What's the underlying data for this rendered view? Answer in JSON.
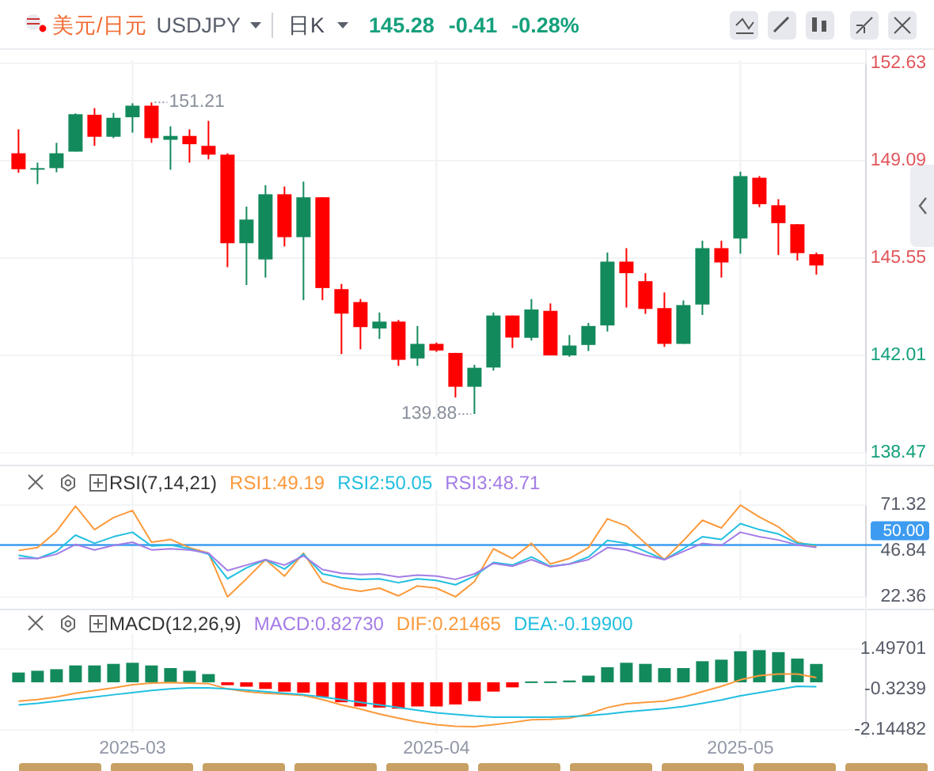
{
  "chart_data": [
    {
      "type": "candlestick",
      "title": "美元/日元",
      "subtitle": "USDJPY",
      "annotations": [
        "日K",
        "145.28",
        "-0.41",
        "-0.28%",
        "151.21",
        "139.88"
      ],
      "categories": [
        null,
        null,
        null,
        null,
        null,
        null,
        "2025-03",
        null,
        null,
        null,
        null,
        null,
        null,
        null,
        null,
        null,
        null,
        null,
        null,
        null,
        null,
        null,
        "2025-04",
        null,
        null,
        null,
        null,
        null,
        null,
        null,
        null,
        null,
        null,
        null,
        null,
        null,
        null,
        null,
        "2025-05",
        null,
        null,
        null,
        null
      ],
      "ohlc": [
        [
          149.36,
          150.23,
          148.65,
          148.78
        ],
        [
          148.78,
          149.02,
          148.24,
          148.82
        ],
        [
          148.82,
          149.74,
          148.67,
          149.36
        ],
        [
          149.42,
          150.81,
          149.42,
          150.78
        ],
        [
          150.76,
          151.0,
          149.63,
          149.96
        ],
        [
          149.96,
          150.83,
          149.91,
          150.65
        ],
        [
          150.67,
          151.18,
          150.11,
          151.09
        ],
        [
          151.09,
          151.21,
          149.74,
          149.91
        ],
        [
          149.85,
          150.34,
          148.76,
          149.99
        ],
        [
          149.99,
          150.23,
          149.02,
          149.69
        ],
        [
          149.63,
          150.54,
          149.14,
          149.31
        ],
        [
          149.31,
          149.36,
          145.22,
          146.09
        ],
        [
          146.09,
          147.42,
          144.57,
          146.95
        ],
        [
          145.5,
          148.2,
          144.84,
          147.87
        ],
        [
          147.87,
          148.15,
          145.97,
          146.31
        ],
        [
          146.31,
          148.33,
          144.02,
          147.76
        ],
        [
          147.76,
          147.76,
          144.02,
          144.46
        ],
        [
          144.42,
          144.61,
          142.06,
          143.53
        ],
        [
          143.95,
          144.06,
          142.23,
          143.04
        ],
        [
          142.99,
          143.57,
          142.61,
          143.24
        ],
        [
          143.24,
          143.3,
          141.63,
          141.85
        ],
        [
          141.9,
          143.08,
          141.63,
          142.43
        ],
        [
          142.43,
          142.48,
          142.14,
          142.19
        ],
        [
          142.1,
          142.1,
          140.48,
          140.87
        ],
        [
          140.87,
          141.67,
          139.88,
          141.56
        ],
        [
          141.57,
          143.57,
          141.46,
          143.46
        ],
        [
          143.46,
          143.46,
          142.28,
          142.66
        ],
        [
          142.65,
          144.06,
          142.55,
          143.68
        ],
        [
          143.63,
          143.9,
          142.01,
          142.01
        ],
        [
          142.01,
          142.75,
          141.96,
          142.37
        ],
        [
          142.39,
          143.19,
          142.17,
          143.08
        ],
        [
          143.1,
          145.75,
          142.88,
          145.42
        ],
        [
          145.42,
          145.91,
          143.75,
          145.0
        ],
        [
          144.71,
          145.0,
          143.52,
          143.7
        ],
        [
          143.73,
          144.3,
          142.32,
          142.43
        ],
        [
          142.43,
          144.01,
          142.43,
          143.84
        ],
        [
          143.86,
          146.18,
          143.48,
          145.91
        ],
        [
          145.91,
          146.18,
          144.84,
          145.39
        ],
        [
          146.26,
          148.69,
          145.71,
          148.53
        ],
        [
          148.47,
          148.53,
          147.4,
          147.51
        ],
        [
          147.47,
          147.69,
          145.66,
          146.82
        ],
        [
          146.78,
          146.78,
          145.46,
          145.73
        ],
        [
          145.69,
          145.75,
          144.95,
          145.28
        ]
      ],
      "colors": [
        "#ff0000",
        "#138a5c",
        "#138a5c",
        "#138a5c",
        "#ff0000",
        "#138a5c",
        "#138a5c",
        "#ff0000",
        "#138a5c",
        "#ff0000",
        "#ff0000",
        "#ff0000",
        "#138a5c",
        "#138a5c",
        "#ff0000",
        "#138a5c",
        "#ff0000",
        "#ff0000",
        "#ff0000",
        "#138a5c",
        "#ff0000",
        "#138a5c",
        "#ff0000",
        "#ff0000",
        "#138a5c",
        "#138a5c",
        "#ff0000",
        "#138a5c",
        "#ff0000",
        "#138a5c",
        "#138a5c",
        "#138a5c",
        "#ff0000",
        "#ff0000",
        "#ff0000",
        "#138a5c",
        "#138a5c",
        "#ff0000",
        "#138a5c",
        "#ff0000",
        "#ff0000",
        "#ff0000",
        "#ff0000"
      ],
      "ylim": [
        138.47,
        152.63
      ],
      "yticks": [
        138.47,
        142.01,
        145.55,
        149.09,
        152.63
      ],
      "grid": true,
      "tick_labels": "y"
    },
    {
      "type": "line",
      "title": "RSI(7,14,21)",
      "legend": "top",
      "grid": "x",
      "tick_labels": "y",
      "categories": [
        null,
        null,
        null,
        null,
        null,
        null,
        "2025-03",
        null,
        null,
        null,
        null,
        null,
        null,
        null,
        null,
        null,
        null,
        null,
        null,
        null,
        null,
        null,
        "2025-04",
        null,
        null,
        null,
        null,
        null,
        null,
        null,
        null,
        null,
        null,
        null,
        null,
        null,
        null,
        null,
        "2025-05",
        null,
        null,
        null,
        null
      ],
      "ylim": [
        22.36,
        71.32
      ],
      "yticks": [
        22.36,
        46.84,
        71.32
      ],
      "ref_lines": [
        {
          "axis": "y",
          "value": 50,
          "label": "50.00",
          "color": "#3d9cf0"
        }
      ],
      "series": [
        {
          "name": "RSI1:49.19",
          "color": "#fb9a3c",
          "values": [
            47.1,
            48.6,
            57.3,
            70.7,
            58.2,
            64.6,
            68.4,
            51.5,
            53.0,
            48.6,
            45.7,
            22.4,
            32.0,
            42.2,
            33.4,
            45.7,
            30.5,
            27.0,
            25.3,
            27.0,
            22.9,
            28.2,
            27.0,
            22.4,
            30.5,
            48.0,
            42.8,
            50.9,
            39.9,
            42.8,
            48.6,
            64.0,
            60.2,
            50.9,
            42.2,
            52.4,
            63.2,
            59.1,
            71.3,
            64.9,
            59.7,
            51.5,
            49.19
          ]
        },
        {
          "name": "RSI2:50.05",
          "color": "#22bfe0",
          "values": [
            44.5,
            42.8,
            46.6,
            55.3,
            50.9,
            54.4,
            56.8,
            49.5,
            50.05,
            48.0,
            45.1,
            32.0,
            37.8,
            42.2,
            37.2,
            45.1,
            34.6,
            32.6,
            31.7,
            32.0,
            29.9,
            32.0,
            31.1,
            28.8,
            33.4,
            40.7,
            39.3,
            43.6,
            38.7,
            39.9,
            43.6,
            52.4,
            50.9,
            46.6,
            42.2,
            48.0,
            54.4,
            53.0,
            61.4,
            58.2,
            55.9,
            50.9,
            50.05
          ]
        },
        {
          "name": "RSI3:48.71",
          "color": "#a47ce6",
          "values": [
            42.8,
            42.8,
            45.1,
            50.3,
            47.4,
            49.8,
            51.5,
            47.4,
            48.0,
            47.4,
            45.7,
            36.4,
            39.3,
            42.2,
            39.3,
            44.2,
            36.9,
            34.9,
            34.3,
            34.6,
            32.9,
            34.0,
            33.4,
            31.7,
            34.6,
            40.2,
            38.7,
            42.2,
            38.4,
            39.9,
            42.2,
            48.6,
            47.4,
            44.5,
            42.2,
            46.6,
            50.9,
            49.8,
            56.8,
            54.4,
            52.7,
            50.05,
            48.71
          ]
        }
      ]
    },
    {
      "type": "bar",
      "title": "MACD(12,26,9)",
      "legend": "top left",
      "grid": "x",
      "categories": [
        null,
        null,
        null,
        null,
        null,
        null,
        "2025-03",
        null,
        null,
        null,
        null,
        null,
        null,
        null,
        null,
        null,
        null,
        null,
        null,
        null,
        null,
        null,
        "2025-04",
        null,
        null,
        null,
        null,
        null,
        null,
        null,
        null,
        null,
        null,
        null,
        null,
        null,
        null,
        null,
        "2025-05",
        null,
        null,
        null,
        null
      ],
      "ylim": [
        -2.14482,
        1.49701
      ],
      "yticks": [
        -2.14482,
        -0.3239,
        1.49701
      ],
      "series": [
        {
          "name": "MACD:0.82730",
          "type": "bar",
          "color": "#a47ce6",
          "colors": [
            "#138a5c",
            "#138a5c",
            "#138a5c",
            "#138a5c",
            "#138a5c",
            "#138a5c",
            "#138a5c",
            "#138a5c",
            "#138a5c",
            "#138a5c",
            "#138a5c",
            "#ff0000",
            "#ff0000",
            "#ff0000",
            "#ff0000",
            "#ff0000",
            "#ff0000",
            "#ff0000",
            "#ff0000",
            "#ff0000",
            "#ff0000",
            "#ff0000",
            "#ff0000",
            "#ff0000",
            "#ff0000",
            "#ff0000",
            "#ff0000",
            "#138a5c",
            "#138a5c",
            "#138a5c",
            "#138a5c",
            "#138a5c",
            "#138a5c",
            "#138a5c",
            "#138a5c",
            "#138a5c",
            "#138a5c",
            "#138a5c",
            "#138a5c",
            "#138a5c",
            "#138a5c",
            "#138a5c",
            "#138a5c"
          ],
          "values": [
            0.44,
            0.52,
            0.59,
            0.76,
            0.76,
            0.83,
            0.88,
            0.76,
            0.64,
            0.52,
            0.37,
            -0.13,
            -0.2,
            -0.3,
            -0.42,
            -0.47,
            -0.66,
            -0.9,
            -1.09,
            -1.14,
            -1.19,
            -1.09,
            -1.09,
            -1.0,
            -0.85,
            -0.42,
            -0.23,
            0.04,
            0.04,
            0.08,
            0.3,
            0.68,
            0.88,
            0.83,
            0.64,
            0.64,
            0.95,
            1.02,
            1.4,
            1.45,
            1.36,
            1.07,
            0.8273
          ]
        },
        {
          "name": "DIF:0.21465",
          "type": "line",
          "color": "#fb9a3c",
          "values": [
            -0.85,
            -0.78,
            -0.66,
            -0.49,
            -0.37,
            -0.25,
            -0.11,
            -0.04,
            -0.01,
            -0.04,
            -0.06,
            -0.3,
            -0.42,
            -0.49,
            -0.54,
            -0.59,
            -0.78,
            -1.02,
            -1.21,
            -1.43,
            -1.62,
            -1.79,
            -1.91,
            -1.98,
            -2.0,
            -1.91,
            -1.81,
            -1.69,
            -1.67,
            -1.62,
            -1.43,
            -1.14,
            -0.97,
            -0.9,
            -0.85,
            -0.66,
            -0.42,
            -0.18,
            0.11,
            0.3,
            0.37,
            0.37,
            0.21465
          ]
        },
        {
          "name": "DEA:-0.19900",
          "type": "line",
          "color": "#22bfe0",
          "values": [
            -1.02,
            -0.95,
            -0.85,
            -0.76,
            -0.66,
            -0.56,
            -0.47,
            -0.37,
            -0.3,
            -0.25,
            -0.25,
            -0.3,
            -0.35,
            -0.42,
            -0.49,
            -0.56,
            -0.66,
            -0.78,
            -0.9,
            -1.02,
            -1.14,
            -1.26,
            -1.38,
            -1.45,
            -1.52,
            -1.57,
            -1.57,
            -1.57,
            -1.57,
            -1.55,
            -1.5,
            -1.43,
            -1.33,
            -1.26,
            -1.19,
            -1.09,
            -0.95,
            -0.8,
            -0.61,
            -0.47,
            -0.32,
            -0.18,
            -0.199
          ]
        }
      ]
    }
  ]
}
